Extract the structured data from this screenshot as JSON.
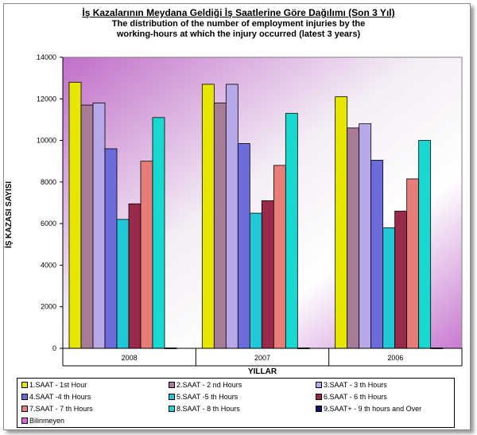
{
  "title": "İş Kazalarının Meydana Geldiği İş Saatlerine Göre Dağılımı (Son 3 Yıl)",
  "subtitle": "The distribution of the number of employment injuries by the working-hours at which the injury occurred (latest 3 years)",
  "chart_data": {
    "type": "bar",
    "title": "İş Kazalarının Meydana Geldiği İş Saatlerine Göre Dağılımı (Son 3 Yıl)",
    "subtitle": "The distribution of the number of employment injuries by the working-hours at which the injury occurred (latest 3 years)",
    "xlabel": "YILLAR",
    "ylabel": "İŞ KAZASI SAYISI",
    "ylim": [
      0,
      14000
    ],
    "yticks": [
      0,
      2000,
      4000,
      6000,
      8000,
      10000,
      12000,
      14000
    ],
    "categories": [
      "2008",
      "2007",
      "2006"
    ],
    "grid": false,
    "legend_position": "bottom",
    "series": [
      {
        "name": "1.SAAT - 1st Hour",
        "color": "#e6e600",
        "values": [
          12800,
          12700,
          12100
        ]
      },
      {
        "name": "2.SAAT - 2 nd Hours",
        "color": "#a87c98",
        "values": [
          11700,
          11800,
          10600
        ]
      },
      {
        "name": "3.SAAT - 3 th Hours",
        "color": "#b8a8e8",
        "values": [
          11800,
          12700,
          10800
        ]
      },
      {
        "name": "4.SAAT -4 th  Hours",
        "color": "#6b6bdb",
        "values": [
          9600,
          9850,
          9050
        ]
      },
      {
        "name": "5.SAAT -5 th  Hours",
        "color": "#20c8d8",
        "values": [
          6200,
          6500,
          5800
        ]
      },
      {
        "name": "6.SAAT - 6 th  Hours",
        "color": "#9a2a4a",
        "values": [
          6950,
          7100,
          6600
        ]
      },
      {
        "name": "7.SAAT - 7 th  Hours",
        "color": "#e87c78",
        "values": [
          9000,
          8800,
          8150
        ]
      },
      {
        "name": "8.SAAT - 8 th Hours",
        "color": "#18d8d0",
        "values": [
          11100,
          11300,
          10000
        ]
      },
      {
        "name": "9.SAAT+ - 9 th hours and Over",
        "color": "#10106a",
        "values": [
          20,
          20,
          20
        ]
      },
      {
        "name": "Bilinmeyen",
        "color": "#e060e0",
        "values": [
          0,
          0,
          0
        ]
      }
    ]
  }
}
